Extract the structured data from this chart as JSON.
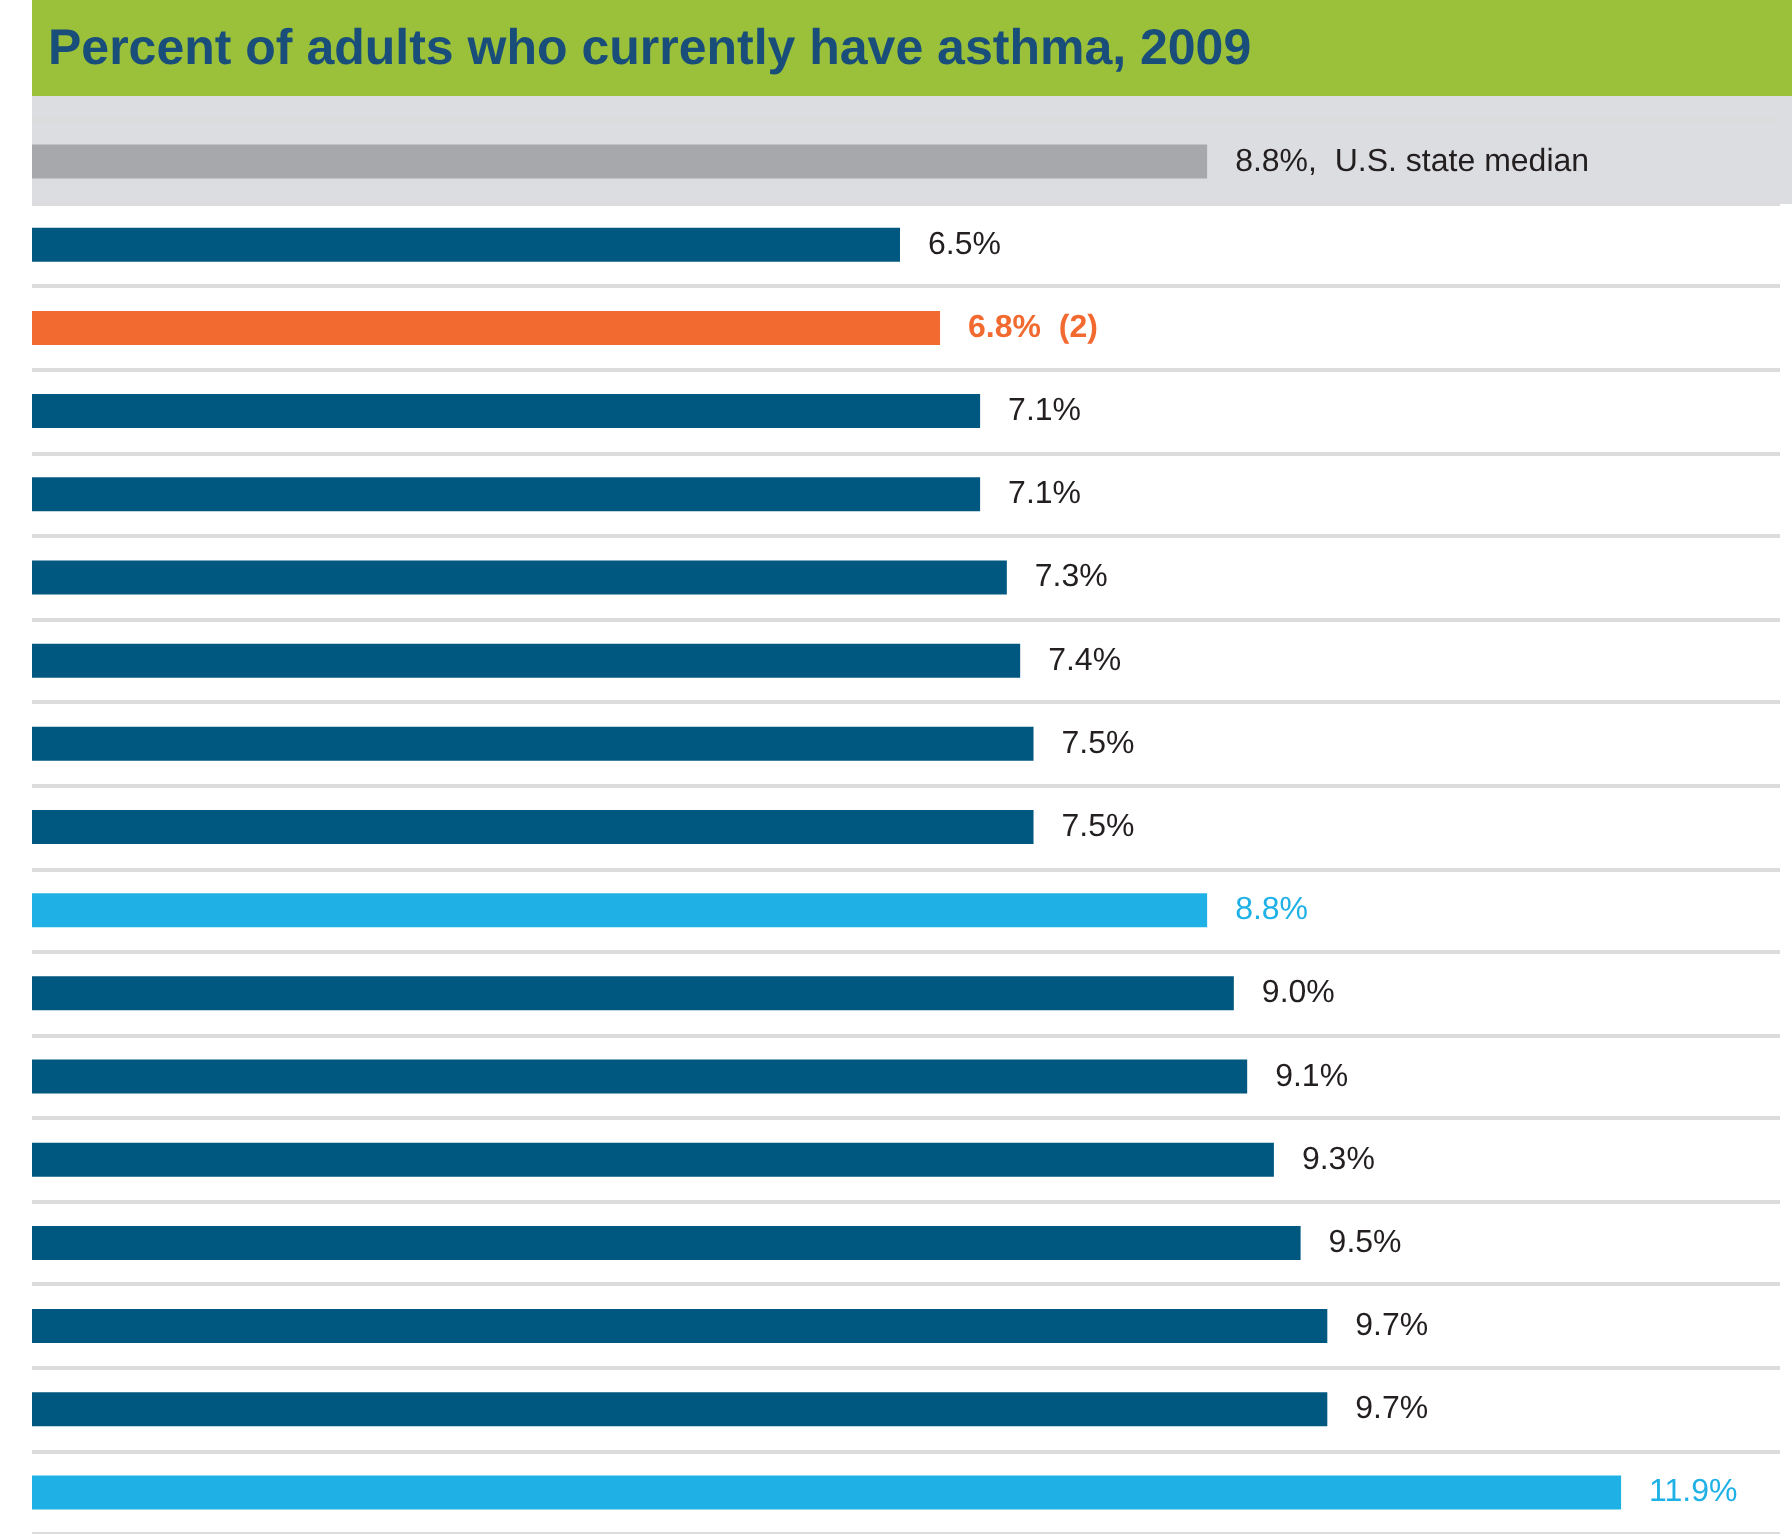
{
  "chart_data": {
    "type": "bar",
    "orientation": "horizontal",
    "title": "Percent of adults who currently have asthma, 2009",
    "categories": [
      null,
      null,
      null,
      null,
      null,
      null,
      null,
      null,
      null,
      null,
      null,
      null,
      null,
      null,
      null,
      null,
      null
    ],
    "values": [
      8.8,
      6.5,
      6.8,
      7.1,
      7.1,
      7.3,
      7.4,
      7.5,
      7.5,
      8.8,
      9.0,
      9.1,
      9.3,
      9.5,
      9.7,
      9.7,
      11.9
    ],
    "colors": [
      "#a6a8ab",
      "#005880",
      "#f26a30",
      "#005880",
      "#005880",
      "#005880",
      "#005880",
      "#005880",
      "#005880",
      "#1fb1e6",
      "#005880",
      "#005880",
      "#005880",
      "#005880",
      "#005880",
      "#005880",
      "#1fb1e6"
    ],
    "value_labels": [
      "8.8%,  U.S. state median",
      "6.5%",
      "6.8%  (2)",
      "7.1%",
      "7.1%",
      "7.3%",
      "7.4%",
      "7.5%",
      "7.5%",
      "8.8%",
      "9.0%",
      "9.1%",
      "9.3%",
      "9.5%",
      "9.7%",
      "9.7%",
      "11.9%"
    ],
    "grid": "y"
  }
}
